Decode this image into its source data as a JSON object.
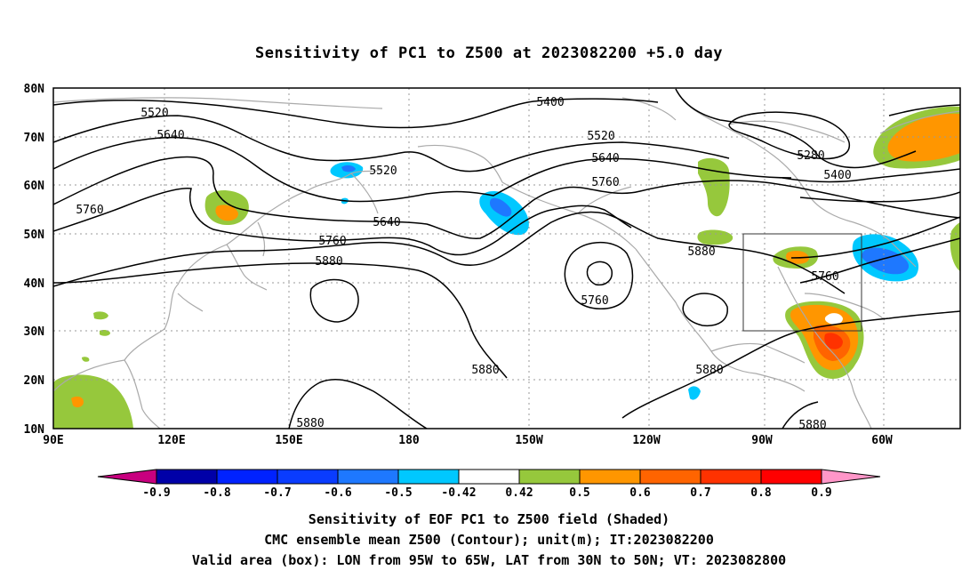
{
  "title": "Sensitivity of PC1 to Z500 at 2023082200 +5.0 day",
  "lat_labels": [
    "80N",
    "70N",
    "60N",
    "50N",
    "40N",
    "30N",
    "20N",
    "10N"
  ],
  "lon_labels": [
    "90E",
    "120E",
    "150E",
    "180",
    "150W",
    "120W",
    "90W",
    "60W"
  ],
  "contour_labels": [
    {
      "text": "5520",
      "id": "c5520a"
    },
    {
      "text": "5640",
      "id": "c5640a"
    },
    {
      "text": "5760",
      "id": "c5760a"
    },
    {
      "text": "5520",
      "id": "c5520b"
    },
    {
      "text": "5640",
      "id": "c5640b"
    },
    {
      "text": "5760",
      "id": "c5760b"
    },
    {
      "text": "5880",
      "id": "c5880a"
    },
    {
      "text": "5400",
      "id": "c5400a"
    },
    {
      "text": "5520",
      "id": "c5520c"
    },
    {
      "text": "5640",
      "id": "c5640c"
    },
    {
      "text": "5760",
      "id": "c5760c"
    },
    {
      "text": "5760",
      "id": "c5760d"
    },
    {
      "text": "5880",
      "id": "c5880b"
    },
    {
      "text": "5880",
      "id": "c5880c"
    },
    {
      "text": "5880",
      "id": "c5880d"
    },
    {
      "text": "5280",
      "id": "c5280a"
    },
    {
      "text": "5400",
      "id": "c5400b"
    },
    {
      "text": "5760",
      "id": "c5760e"
    },
    {
      "text": "5880",
      "id": "c5880e"
    },
    {
      "text": "5880",
      "id": "c5880f"
    }
  ],
  "colorbar": {
    "colors": [
      "#c8007f",
      "#0000a8",
      "#0022ff",
      "#0a3cff",
      "#1e78ff",
      "#00c8ff",
      "#ffffff",
      "#96c83c",
      "#ff9600",
      "#ff6400",
      "#ff3200",
      "#ff0000",
      "#ff96c8"
    ],
    "labels": [
      "-0.9",
      "-0.8",
      "-0.7",
      "-0.6",
      "-0.5",
      "-0.42",
      "0.42",
      "0.5",
      "0.6",
      "0.7",
      "0.8",
      "0.9"
    ]
  },
  "captions": {
    "line1": "Sensitivity of EOF PC1 to Z500 field (Shaded)",
    "line2": "CMC ensemble mean Z500 (Contour); unit(m); IT:2023082200",
    "line3": "Valid area (box): LON from 95W to 65W, LAT from 30N to 50N; VT: 2023082800"
  },
  "colors": {
    "contour": "#000000",
    "coast": "#aaaaaa",
    "grid": "#999999",
    "positive_low": "#96c83c",
    "positive_mid": "#ff9600",
    "positive_high": "#ff6400",
    "negative_low": "#00c8ff",
    "negative_mid": "#1e78ff"
  }
}
